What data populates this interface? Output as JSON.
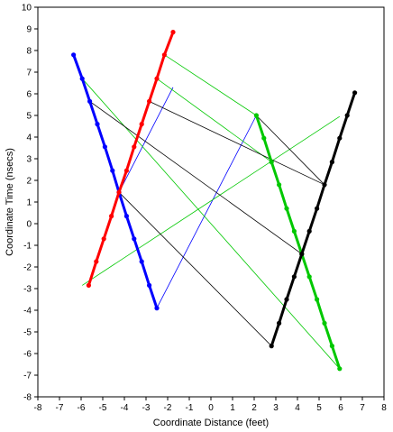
{
  "chart_data": {
    "type": "scatter",
    "title": "",
    "xlabel": "Coordinate Distance (feet)",
    "ylabel": "Coordinate Time (nsecs)",
    "xlim": [
      -8,
      8
    ],
    "ylim": [
      -8,
      10
    ],
    "xticks": [
      -8,
      -7,
      -6,
      -5,
      -4,
      -3,
      -2,
      -1,
      0,
      1,
      2,
      3,
      4,
      5,
      6,
      7,
      8
    ],
    "yticks": [
      -8,
      -7,
      -6,
      -5,
      -4,
      -3,
      -2,
      -1,
      0,
      1,
      2,
      3,
      4,
      5,
      6,
      7,
      8,
      9,
      10
    ],
    "grid": false,
    "legend": false,
    "series": [
      {
        "color": "#0000ff",
        "points": [
          [
            -6.35,
            7.8
          ],
          [
            -5.95,
            6.7
          ],
          [
            -5.6,
            5.65
          ],
          [
            -5.25,
            4.6
          ],
          [
            -4.9,
            3.55
          ],
          [
            -4.55,
            2.45
          ],
          [
            -4.25,
            1.45
          ],
          [
            -3.9,
            0.35
          ],
          [
            -3.55,
            -0.7
          ],
          [
            -3.2,
            -1.75
          ],
          [
            -2.85,
            -2.85
          ],
          [
            -2.5,
            -3.9
          ]
        ]
      },
      {
        "color": "#ff0000",
        "points": [
          [
            -5.65,
            -2.85
          ],
          [
            -5.3,
            -1.75
          ],
          [
            -4.95,
            -0.7
          ],
          [
            -4.6,
            0.35
          ],
          [
            -4.25,
            1.45
          ],
          [
            -3.9,
            2.45
          ],
          [
            -3.55,
            3.55
          ],
          [
            -3.2,
            4.6
          ],
          [
            -2.85,
            5.65
          ],
          [
            -2.5,
            6.7
          ],
          [
            -2.15,
            7.8
          ],
          [
            -1.75,
            8.85
          ]
        ]
      },
      {
        "color": "#00c800",
        "points": [
          [
            2.1,
            5.0
          ],
          [
            2.45,
            3.95
          ],
          [
            2.8,
            2.85
          ],
          [
            3.15,
            1.8
          ],
          [
            3.5,
            0.7
          ],
          [
            3.85,
            -0.35
          ],
          [
            4.2,
            -1.4
          ],
          [
            4.55,
            -2.45
          ],
          [
            4.9,
            -3.5
          ],
          [
            5.25,
            -4.6
          ],
          [
            5.6,
            -5.65
          ],
          [
            5.95,
            -6.7
          ]
        ]
      },
      {
        "color": "#000000",
        "points": [
          [
            2.8,
            -5.65
          ],
          [
            3.15,
            -4.6
          ],
          [
            3.5,
            -3.5
          ],
          [
            3.85,
            -2.45
          ],
          [
            4.2,
            -1.4
          ],
          [
            4.55,
            -0.35
          ],
          [
            4.9,
            0.7
          ],
          [
            5.25,
            1.8
          ],
          [
            5.6,
            2.85
          ],
          [
            5.95,
            3.95
          ],
          [
            6.3,
            5.0
          ],
          [
            6.65,
            6.05
          ]
        ]
      }
    ],
    "connectors": [
      {
        "color": "#0000ff",
        "from": [
          -2.5,
          -3.9
        ],
        "to": [
          2.1,
          5.0
        ]
      },
      {
        "color": "#0000ff",
        "from": [
          -4.25,
          1.45
        ],
        "to": [
          -1.75,
          6.3
        ]
      },
      {
        "color": "#ff0000",
        "from": [
          -5.65,
          -2.85
        ],
        "to": [
          -4.25,
          1.45
        ]
      },
      {
        "color": "#ff0000",
        "from": [
          -5.6,
          5.65
        ],
        "to": [
          -4.25,
          1.45
        ]
      },
      {
        "color": "#00c800",
        "from": [
          -5.95,
          6.7
        ],
        "to": [
          5.95,
          -6.7
        ]
      },
      {
        "color": "#00c800",
        "from": [
          -2.15,
          7.8
        ],
        "to": [
          2.1,
          5.0
        ]
      },
      {
        "color": "#00c800",
        "from": [
          -2.5,
          6.7
        ],
        "to": [
          2.8,
          2.85
        ]
      },
      {
        "color": "#00c800",
        "from": [
          -5.95,
          -2.85
        ],
        "to": [
          5.95,
          4.95
        ]
      },
      {
        "color": "#000000",
        "from": [
          -5.6,
          5.65
        ],
        "to": [
          4.2,
          -1.4
        ]
      },
      {
        "color": "#000000",
        "from": [
          -4.25,
          1.45
        ],
        "to": [
          2.8,
          -5.65
        ]
      },
      {
        "color": "#000000",
        "from": [
          -2.85,
          5.65
        ],
        "to": [
          5.25,
          1.8
        ]
      },
      {
        "color": "#000000",
        "from": [
          -1.75,
          8.85
        ],
        "to": [
          -2.15,
          7.8
        ]
      },
      {
        "color": "#000000",
        "from": [
          2.1,
          5.0
        ],
        "to": [
          5.25,
          1.8
        ]
      }
    ]
  }
}
